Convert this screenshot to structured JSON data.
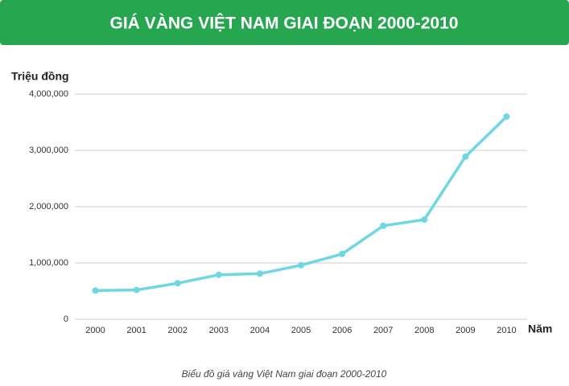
{
  "chart_data": {
    "type": "line",
    "title": "GIÁ VÀNG VIỆT NAM GIAI ĐOẠN 2000-2010",
    "y_label": "Triệu đồng",
    "x_label": "Năm",
    "caption": "Biểu đồ giá vàng Việt Nam giai đoạn 2000-2010",
    "categories": [
      "2000",
      "2001",
      "2002",
      "2003",
      "2004",
      "2005",
      "2006",
      "2007",
      "2008",
      "2009",
      "2010"
    ],
    "values": [
      510000,
      520000,
      640000,
      790000,
      810000,
      960000,
      1160000,
      1660000,
      1770000,
      2890000,
      3600000
    ],
    "color": "#6dd8e4",
    "ylim": [
      0,
      4000000
    ],
    "yticks": [
      0,
      {
        "value": 1000000,
        "label": "1,000,000"
      },
      {
        "value": 2000000,
        "label": "2,000,000"
      },
      {
        "value": 3000000,
        "label": "3,000,000"
      },
      {
        "value": 4000000,
        "label": "4,000,000"
      }
    ],
    "grid": true
  }
}
